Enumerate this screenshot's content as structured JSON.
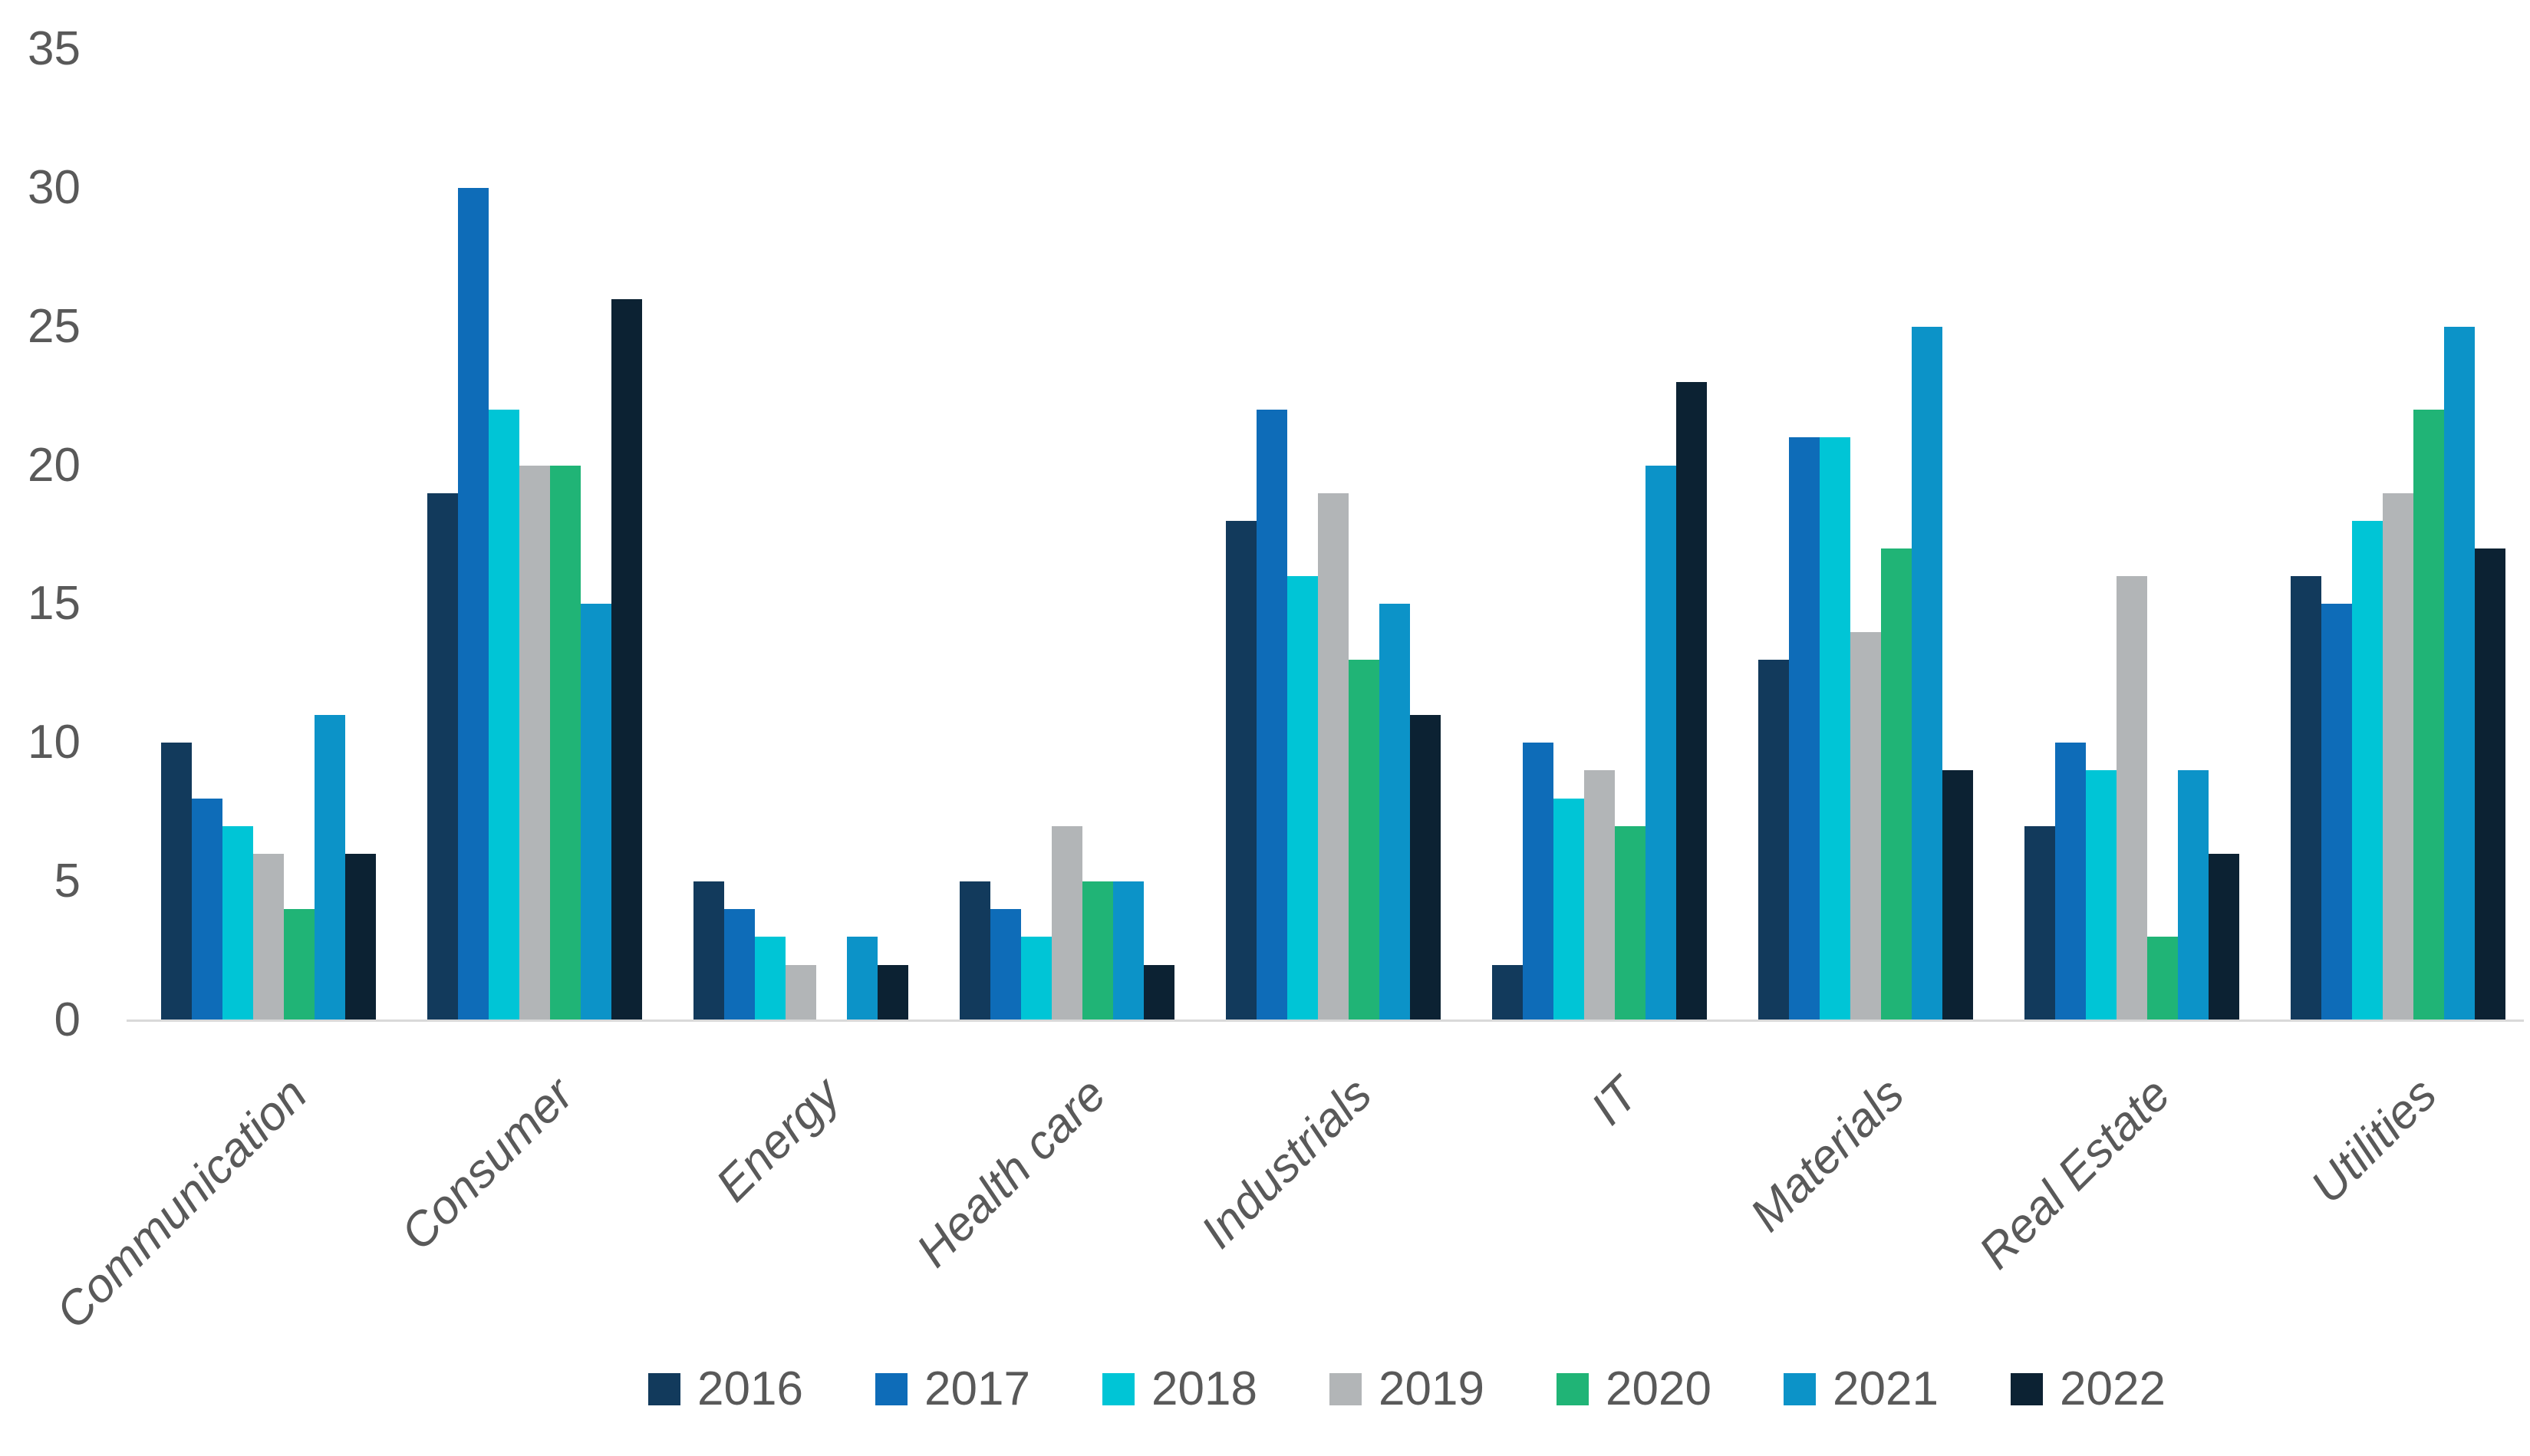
{
  "chart_data": {
    "type": "bar",
    "title": "",
    "categories": [
      "Communication",
      "Consumer",
      "Energy",
      "Health care",
      "Industrials",
      "IT",
      "Materials",
      "Real Estate",
      "Utilities"
    ],
    "series": [
      {
        "name": "2016",
        "color": "#123a5c",
        "values": [
          10,
          19,
          5,
          5,
          18,
          2,
          13,
          7,
          16
        ]
      },
      {
        "name": "2017",
        "color": "#0e6cb8",
        "values": [
          8,
          30,
          4,
          4,
          22,
          10,
          21,
          10,
          15
        ]
      },
      {
        "name": "2018",
        "color": "#00c5d6",
        "values": [
          7,
          22,
          3,
          3,
          16,
          8,
          21,
          9,
          18
        ]
      },
      {
        "name": "2019",
        "color": "#b2b5b7",
        "values": [
          6,
          20,
          2,
          7,
          19,
          9,
          14,
          16,
          19
        ]
      },
      {
        "name": "2020",
        "color": "#20b476",
        "values": [
          4,
          20,
          0,
          5,
          13,
          7,
          17,
          3,
          22
        ]
      },
      {
        "name": "2021",
        "color": "#0c93c8",
        "values": [
          11,
          15,
          3,
          5,
          15,
          20,
          25,
          9,
          25
        ]
      },
      {
        "name": "2022",
        "color": "#0c2233",
        "values": [
          6,
          26,
          2,
          2,
          11,
          23,
          9,
          6,
          17
        ]
      }
    ],
    "y_axis": {
      "min": 0,
      "max": 35,
      "tick_step": 5,
      "tick_labels": [
        "0",
        "5",
        "10",
        "15",
        "20",
        "25",
        "30",
        "35"
      ]
    },
    "x_axis": {
      "label_rotation_deg": 45,
      "label_style": "italic"
    },
    "legend": {
      "position": "bottom",
      "entries": [
        "2016",
        "2017",
        "2018",
        "2019",
        "2020",
        "2021",
        "2022"
      ]
    },
    "grid": false,
    "axis_line_color": "#d9d9d9",
    "text_color": "#595959",
    "background_color": "#ffffff"
  }
}
